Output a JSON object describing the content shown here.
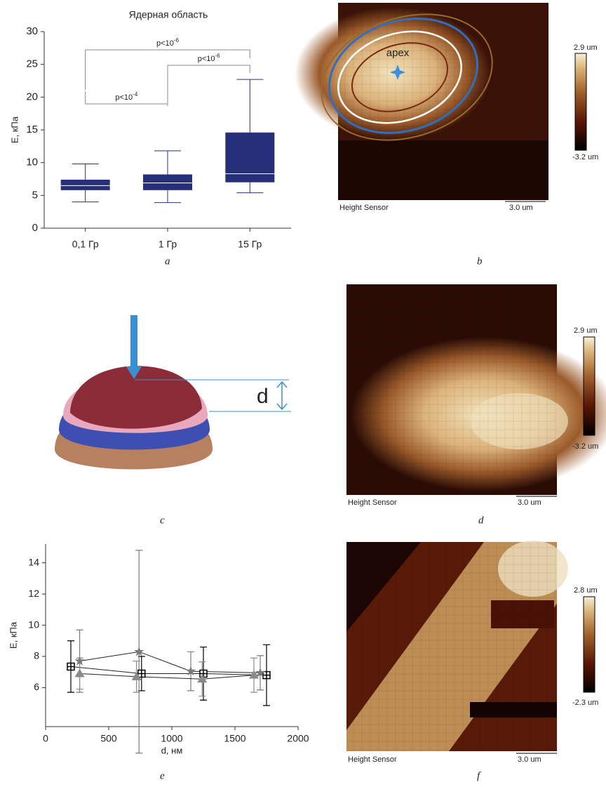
{
  "chart_data": [
    {
      "type": "box",
      "title": "Ядерная область",
      "ylabel": "E, кПа",
      "categories": [
        "0,1 Гр",
        "1 Гр",
        "15 Гр"
      ],
      "whislo": [
        4.0,
        3.9,
        5.4
      ],
      "q1": [
        5.8,
        5.8,
        7.0
      ],
      "median": [
        6.5,
        6.9,
        8.3
      ],
      "q3": [
        7.4,
        8.2,
        14.6
      ],
      "whishi": [
        9.8,
        11.8,
        22.7
      ],
      "color": "#26307a",
      "median_color": "#ffffff",
      "ylim": [
        0,
        30
      ],
      "yticks": [
        0,
        5,
        10,
        15,
        20,
        25,
        30
      ],
      "annotations": [
        {
          "text": "p<10",
          "superscript": "-6"
        },
        {
          "text": "p<10",
          "superscript": "-6"
        },
        {
          "text": "p<10",
          "superscript": "-4"
        }
      ]
    },
    {
      "type": "line",
      "xlabel": "d, нм",
      "ylabel": "E, кПа",
      "xlim": [
        0,
        2000
      ],
      "xticks": [
        0,
        500,
        1000,
        1500,
        2000
      ],
      "ylim": [
        3.5,
        15.2
      ],
      "yticks": [
        6,
        8,
        10,
        12,
        14
      ],
      "series": [
        {
          "marker": "square",
          "color": "#000000",
          "x": [
            200,
            760,
            1250,
            1750
          ],
          "values": [
            7.35,
            6.9,
            6.9,
            6.8
          ],
          "errors": [
            1.65,
            1.1,
            1.7,
            1.95
          ]
        },
        {
          "marker": "star",
          "color": "#7a7a7a",
          "x": [
            270,
            740,
            1150,
            1700
          ],
          "values": [
            7.7,
            8.3,
            7.05,
            6.95
          ],
          "errors": [
            2.0,
            6.5,
            1.25,
            1.1
          ]
        },
        {
          "marker": "triangle",
          "color": "#8a8a8a",
          "x": [
            270,
            720,
            1240,
            1650
          ],
          "values": [
            6.9,
            6.7,
            6.55,
            6.8
          ],
          "errors": [
            1.0,
            1.0,
            1.1,
            1.1
          ]
        }
      ]
    }
  ],
  "images": [
    {
      "caption": "Height Sensor",
      "scale": "3.0 um",
      "colorbar_max": "2.9 um",
      "colorbar_min": "-3.2 um",
      "annotation": "apex"
    },
    {
      "caption": "Height Sensor",
      "scale": "3.0 um",
      "colorbar_max": "2.9 um",
      "colorbar_min": "-3.2 um"
    },
    {
      "caption": "Height Sensor",
      "scale": "3.0 um",
      "colorbar_max": "2.8 um",
      "colorbar_min": "-2.3 um"
    }
  ],
  "diagram": {
    "label": "d"
  },
  "panel_labels": [
    "a",
    "b",
    "c",
    "d",
    "e",
    "f"
  ]
}
